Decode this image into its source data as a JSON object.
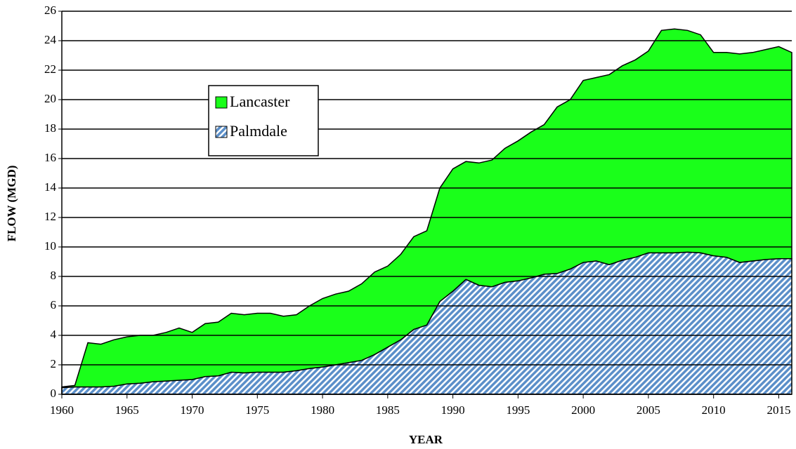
{
  "chart_data": {
    "type": "stacked_area",
    "x_label": "YEAR",
    "y_label": "FLOW (MGD)",
    "x": [
      1960,
      1961,
      1962,
      1963,
      1964,
      1965,
      1966,
      1967,
      1968,
      1969,
      1970,
      1971,
      1972,
      1973,
      1974,
      1975,
      1976,
      1977,
      1978,
      1979,
      1980,
      1981,
      1982,
      1983,
      1984,
      1985,
      1986,
      1987,
      1988,
      1989,
      1990,
      1991,
      1992,
      1993,
      1994,
      1995,
      1996,
      1997,
      1998,
      1999,
      2000,
      2001,
      2002,
      2003,
      2004,
      2005,
      2006,
      2007,
      2008,
      2009,
      2010,
      2011,
      2012,
      2013,
      2014,
      2015,
      2016
    ],
    "series": [
      {
        "name": "Palmdale",
        "color": "#5b8fc9",
        "hatch": true,
        "values": [
          0.45,
          0.5,
          0.5,
          0.5,
          0.55,
          0.7,
          0.75,
          0.85,
          0.9,
          0.95,
          1.0,
          1.2,
          1.25,
          1.5,
          1.45,
          1.5,
          1.5,
          1.5,
          1.6,
          1.75,
          1.85,
          2.0,
          2.15,
          2.3,
          2.7,
          3.2,
          3.7,
          4.4,
          4.7,
          6.3,
          7.0,
          7.8,
          7.4,
          7.3,
          7.6,
          7.7,
          7.9,
          8.15,
          8.2,
          8.5,
          8.95,
          9.05,
          8.8,
          9.1,
          9.3,
          9.6,
          9.6,
          9.6,
          9.65,
          9.6,
          9.4,
          9.3,
          8.95,
          9.05,
          9.15,
          9.2,
          9.2
        ]
      },
      {
        "name": "Lancaster",
        "color": "#1aff1a",
        "hatch": false,
        "values": [
          0.05,
          0.1,
          3.0,
          2.9,
          3.15,
          3.2,
          3.25,
          3.15,
          3.3,
          3.55,
          3.2,
          3.6,
          3.65,
          4.0,
          3.95,
          4.0,
          4.0,
          3.8,
          3.8,
          4.25,
          4.65,
          4.8,
          4.85,
          5.2,
          5.6,
          5.5,
          5.8,
          6.3,
          6.4,
          7.7,
          8.3,
          8.0,
          8.3,
          8.6,
          9.1,
          9.5,
          9.9,
          10.15,
          11.3,
          11.5,
          12.35,
          12.45,
          12.9,
          13.2,
          13.4,
          13.7,
          15.1,
          15.2,
          15.05,
          14.8,
          13.8,
          13.9,
          14.15,
          14.15,
          14.25,
          14.4,
          14.0
        ]
      }
    ],
    "xlim": [
      1960,
      2016
    ],
    "xticks": [
      1960,
      1965,
      1970,
      1975,
      1980,
      1985,
      1990,
      1995,
      2000,
      2005,
      2010,
      2015
    ],
    "ylim": [
      0,
      26
    ],
    "yticks": [
      0,
      2,
      4,
      6,
      8,
      10,
      12,
      14,
      16,
      18,
      20,
      22,
      24,
      26
    ],
    "grid": true,
    "legend": "upper left"
  }
}
